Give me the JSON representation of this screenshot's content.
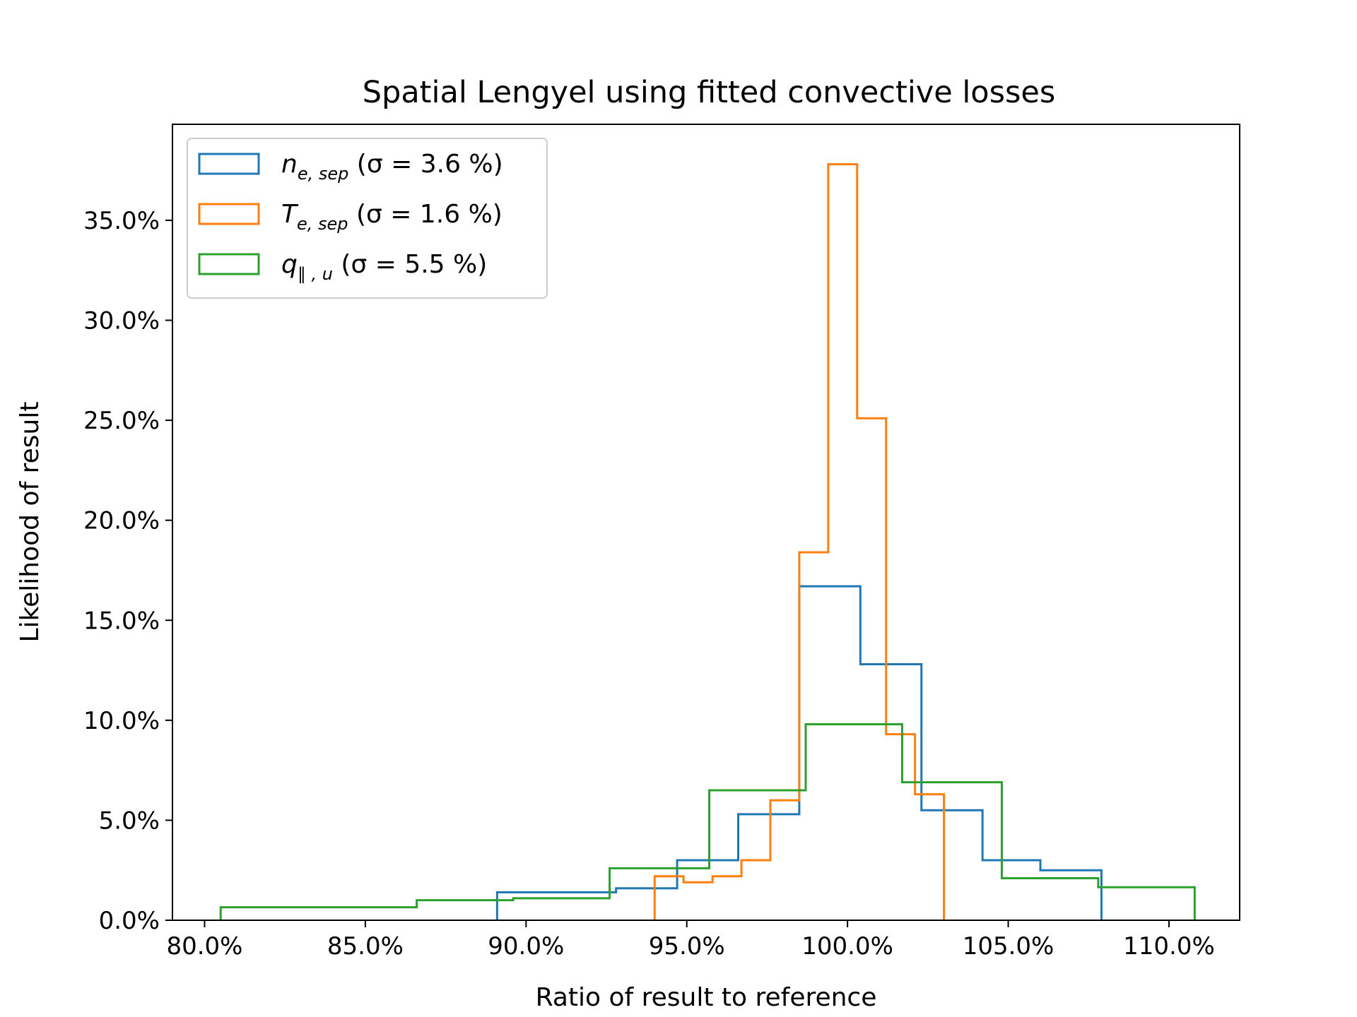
{
  "chart_data": {
    "type": "histogram",
    "title": "Spatial Lengyel using fitted convective losses",
    "xlabel": "Ratio of result to reference",
    "ylabel": "Likelihood of result",
    "xlim": [
      79.0,
      112.2
    ],
    "ylim": [
      0.0,
      39.8
    ],
    "xticks": [
      80,
      85,
      90,
      95,
      100,
      105,
      110
    ],
    "xtick_labels": [
      "80.0%",
      "85.0%",
      "90.0%",
      "95.0%",
      "100.0%",
      "105.0%",
      "110.0%"
    ],
    "yticks": [
      0,
      5,
      10,
      15,
      20,
      25,
      30,
      35
    ],
    "ytick_labels": [
      "0.0%",
      "5.0%",
      "10.0%",
      "15.0%",
      "20.0%",
      "25.0%",
      "30.0%",
      "35.0%"
    ],
    "legend_position": "upper-left",
    "series": [
      {
        "name": "n_e,sep",
        "legend_main": "n",
        "legend_sub": "e, sep",
        "legend_stat": "(σ = 3.6 %)",
        "color": "#1f77b4",
        "edges": [
          89.1,
          92.8,
          94.7,
          96.6,
          98.5,
          100.4,
          102.3,
          104.2,
          106.0,
          107.9
        ],
        "values": [
          1.4,
          1.6,
          3.0,
          5.3,
          16.7,
          12.8,
          5.5,
          3.0,
          2.5
        ]
      },
      {
        "name": "T_e,sep",
        "legend_main": "T",
        "legend_sub": "e, sep",
        "legend_stat": "(σ = 1.6 %)",
        "color": "#ff7f0e",
        "edges": [
          94.0,
          94.9,
          95.8,
          96.7,
          97.6,
          98.5,
          99.4,
          100.3,
          101.2,
          102.1,
          103.0
        ],
        "values": [
          2.2,
          1.9,
          2.2,
          3.0,
          6.0,
          18.4,
          37.8,
          25.1,
          9.3,
          6.3
        ]
      },
      {
        "name": "q_∥,u",
        "legend_main": "q",
        "legend_sub": "∥ , u",
        "legend_stat": "(σ = 5.5 %)",
        "color": "#2ca02c",
        "edges": [
          80.5,
          86.6,
          89.6,
          92.6,
          95.7,
          98.7,
          101.7,
          104.8,
          107.8,
          110.8
        ],
        "values": [
          0.65,
          1.0,
          1.1,
          2.6,
          6.5,
          9.8,
          6.9,
          2.1,
          1.65
        ]
      }
    ]
  }
}
